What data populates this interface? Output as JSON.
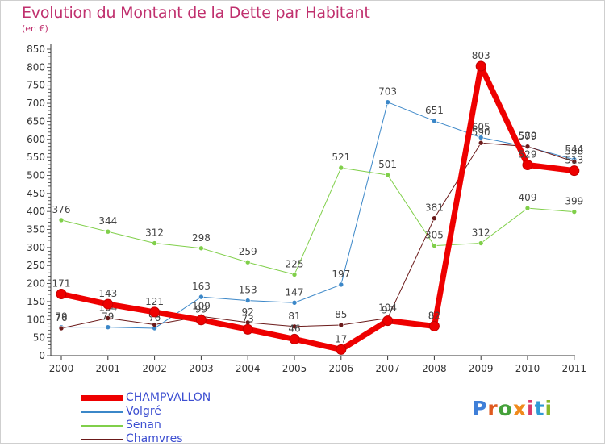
{
  "title": "Evolution du Montant de la Dette par Habitant",
  "subtitle": "(en €)",
  "logo": {
    "text": "Proxiti",
    "letter_colors": [
      "#3f7fd8",
      "#e05a1f",
      "#45a13a",
      "#f08a1c",
      "#d93a6a",
      "#2f9ad6",
      "#8ab82a"
    ]
  },
  "chart_data": {
    "type": "line",
    "title": "Evolution du Montant de la Dette par Habitant",
    "ylabel": "(en €)",
    "xlabel": "",
    "categories": [
      "2000",
      "2001",
      "2002",
      "2003",
      "2004",
      "2005",
      "2006",
      "2007",
      "2008",
      "2009",
      "2010",
      "2011"
    ],
    "yticks": [
      0,
      50,
      100,
      150,
      200,
      250,
      300,
      350,
      400,
      450,
      500,
      550,
      600,
      650,
      700,
      750,
      800,
      850
    ],
    "ylim": [
      0,
      850
    ],
    "grid": false,
    "legend_position": "bottom-left",
    "series": [
      {
        "name": "Volgré",
        "color": "#3b87c8",
        "width": 1,
        "values": [
          79,
          79,
          76,
          163,
          153,
          147,
          197,
          703,
          651,
          605,
          579,
          544
        ]
      },
      {
        "name": "Senan",
        "color": "#80cf4a",
        "width": 1,
        "values": [
          376,
          344,
          312,
          298,
          259,
          225,
          521,
          501,
          305,
          312,
          409,
          399
        ]
      },
      {
        "name": "Chamvres",
        "color": "#6b1a1a",
        "width": 1,
        "values": [
          76,
          104,
          86,
          109,
          92,
          81,
          85,
          104,
          381,
          590,
          580,
          538
        ]
      },
      {
        "name": "CHAMPVALLON",
        "color": "#ee0000",
        "width": 7,
        "values": [
          171,
          143,
          121,
          99,
          73,
          46,
          17,
          97,
          82,
          803,
          529,
          513
        ]
      }
    ],
    "legend": [
      {
        "name": "CHAMPVALLON",
        "color": "#ee0000",
        "width": 7
      },
      {
        "name": "Volgré",
        "color": "#3b87c8",
        "width": 2
      },
      {
        "name": "Senan",
        "color": "#80cf4a",
        "width": 2
      },
      {
        "name": "Chamvres",
        "color": "#6b1a1a",
        "width": 2
      }
    ]
  }
}
